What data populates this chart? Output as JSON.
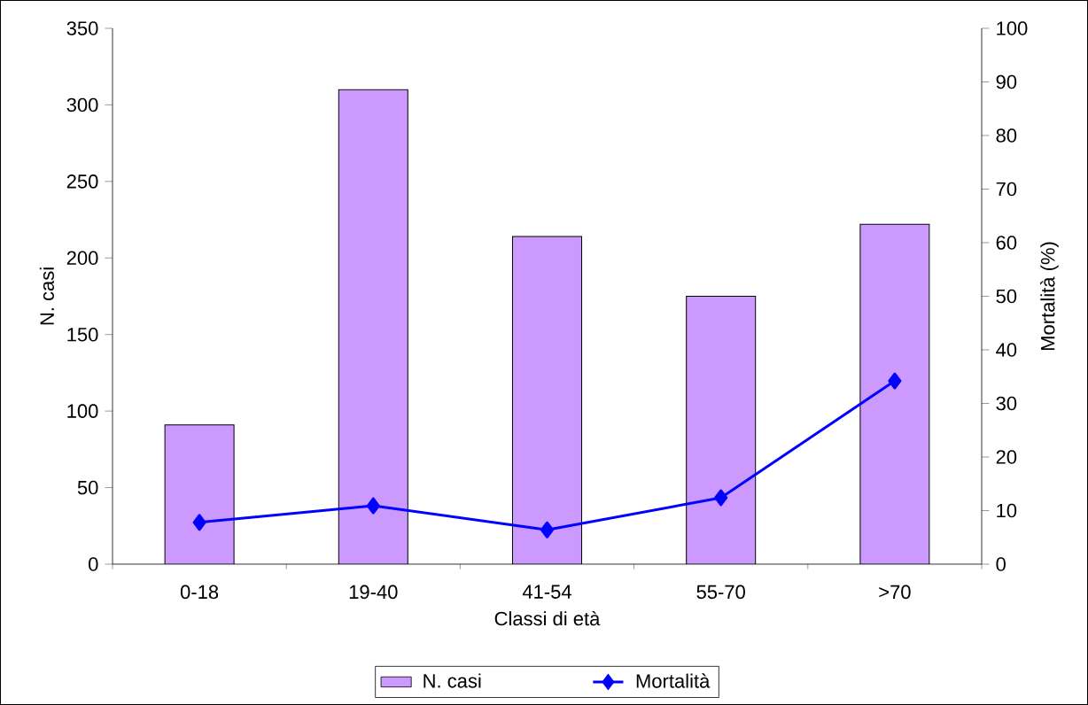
{
  "chart_data": {
    "type": "bar",
    "categories": [
      "0-18",
      "19-40",
      "41-54",
      "55-70",
      ">70"
    ],
    "xlabel": "Classi di età",
    "ylabel": "N. casi",
    "y2label": "Mortalità (%)",
    "ylim": [
      0,
      350
    ],
    "yticks": [
      0,
      50,
      100,
      150,
      200,
      250,
      300,
      350
    ],
    "y2lim": [
      0,
      100
    ],
    "y2ticks": [
      0,
      10,
      20,
      30,
      40,
      50,
      60,
      70,
      80,
      90,
      100
    ],
    "legend": "bottom",
    "grid": false,
    "series": [
      {
        "name": "N. casi",
        "color": "#cc99ff",
        "values": [
          91,
          310,
          214,
          175,
          222
        ]
      },
      {
        "name": "Mortalità",
        "type": "line",
        "axis": "y2",
        "color": "#0000ff",
        "marker": "diamond",
        "line_style": "solid",
        "values": [
          7.8,
          10.9,
          6.4,
          12.4,
          34.2
        ]
      }
    ]
  }
}
